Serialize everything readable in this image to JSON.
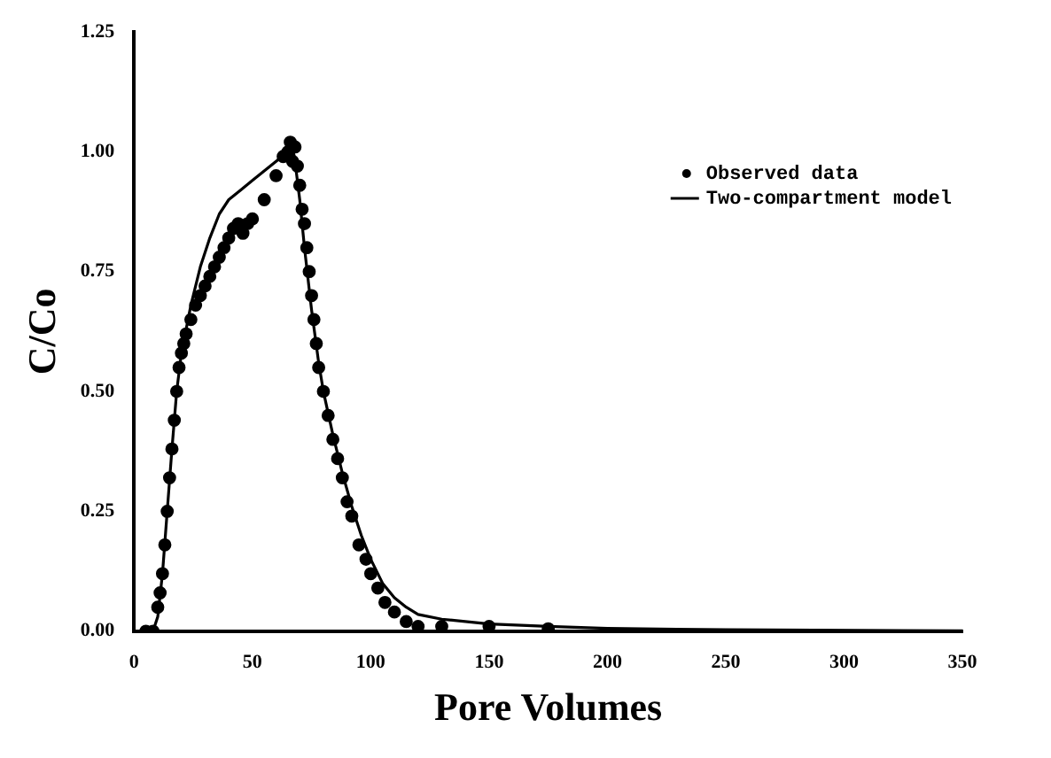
{
  "chart_data": {
    "type": "line",
    "xlabel": "Pore Volumes",
    "ylabel": "C/Co",
    "xlim": [
      0,
      350
    ],
    "ylim": [
      0,
      1.25
    ],
    "xticks": [
      0,
      50,
      100,
      150,
      200,
      250,
      300,
      350
    ],
    "yticks": [
      {
        "value": 0,
        "label": "0.00"
      },
      0.25,
      {
        "value": 0.5,
        "label": "0.50"
      },
      0.75,
      {
        "value": 1,
        "label": "1.00"
      },
      1.25
    ],
    "grid": false,
    "legend": "top right",
    "series": [
      {
        "name": "Observed data",
        "type": "scatter",
        "color": "#000000",
        "marker": "circle",
        "x": [
          5,
          8,
          10,
          11,
          12,
          13,
          14,
          15,
          16,
          17,
          18,
          19,
          20,
          21,
          22,
          24,
          26,
          28,
          30,
          32,
          34,
          36,
          38,
          40,
          42,
          44,
          46,
          48,
          50,
          55,
          60,
          63,
          65,
          66,
          67,
          68,
          69,
          70,
          71,
          72,
          73,
          74,
          75,
          76,
          77,
          78,
          80,
          82,
          84,
          86,
          88,
          90,
          92,
          95,
          98,
          100,
          103,
          106,
          110,
          115,
          120,
          130,
          150,
          175
        ],
        "values": [
          0.0,
          0.0,
          0.05,
          0.08,
          0.12,
          0.18,
          0.25,
          0.32,
          0.38,
          0.44,
          0.5,
          0.55,
          0.58,
          0.6,
          0.62,
          0.65,
          0.68,
          0.7,
          0.72,
          0.74,
          0.76,
          0.78,
          0.8,
          0.82,
          0.84,
          0.85,
          0.83,
          0.85,
          0.86,
          0.9,
          0.95,
          0.99,
          1.0,
          1.02,
          0.98,
          1.01,
          0.97,
          0.93,
          0.88,
          0.85,
          0.8,
          0.75,
          0.7,
          0.65,
          0.6,
          0.55,
          0.5,
          0.45,
          0.4,
          0.36,
          0.32,
          0.27,
          0.24,
          0.18,
          0.15,
          0.12,
          0.09,
          0.06,
          0.04,
          0.02,
          0.01,
          0.01,
          0.01,
          0.005
        ]
      },
      {
        "name": "Two-compartment model",
        "color": "#000000",
        "marker": "none",
        "line_style": "solid",
        "x": [
          0,
          8,
          10,
          12,
          14,
          16,
          18,
          20,
          24,
          28,
          32,
          36,
          40,
          45,
          50,
          55,
          60,
          65,
          67,
          68,
          70,
          72,
          75,
          78,
          80,
          84,
          88,
          92,
          96,
          100,
          105,
          110,
          115,
          120,
          130,
          150,
          175,
          200,
          250,
          350
        ],
        "values": [
          0,
          0,
          0.03,
          0.12,
          0.25,
          0.38,
          0.5,
          0.58,
          0.68,
          0.76,
          0.82,
          0.87,
          0.9,
          0.92,
          0.94,
          0.96,
          0.98,
          1.0,
          1.01,
          0.98,
          0.9,
          0.8,
          0.67,
          0.56,
          0.5,
          0.41,
          0.33,
          0.26,
          0.2,
          0.15,
          0.1,
          0.07,
          0.05,
          0.035,
          0.025,
          0.015,
          0.01,
          0.006,
          0.003,
          0.001
        ]
      }
    ]
  }
}
